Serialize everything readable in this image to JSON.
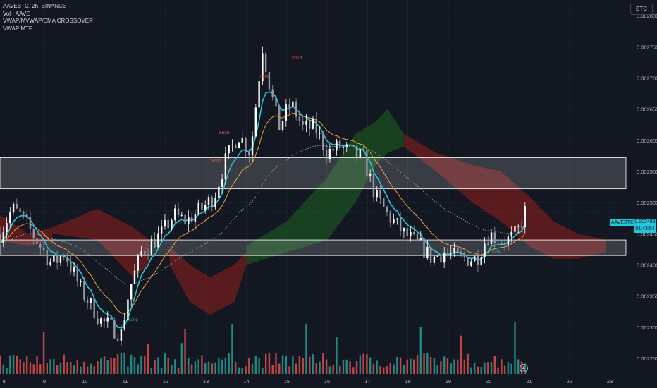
{
  "legend": {
    "symbol_line": "AAVEBTC, 2h, BINANCE",
    "indicators": [
      "Vol · AAVE",
      "VWAP/MVWAP/EMA CROSSOVER",
      "VWAP MTF"
    ]
  },
  "currency_badge": "BTC",
  "current_price": {
    "symbol": "AAVEBTC",
    "value": "0.002485",
    "countdown": "01:43:54"
  },
  "colors": {
    "background": "#131722",
    "up": "#ffffff",
    "down": "#9598a1",
    "vwap_line": "#26c6da",
    "ema_line": "#f0a23a",
    "mvwap_line": "#9fb6a8",
    "volume_up": "#26a69a",
    "volume_down": "#ef5350",
    "cloud_green": "#1b5e20",
    "cloud_red": "#8b1e1e",
    "zone": "#ffffff",
    "signal_short": "#ef5350",
    "signal_long": "#26a69a"
  },
  "chart_data": {
    "type": "candlestick",
    "x_labels": [
      "8",
      "9",
      "10",
      "11",
      "12",
      "13",
      "14",
      "15",
      "16",
      "17",
      "18",
      "19",
      "20",
      "21",
      "22",
      "23"
    ],
    "y_ticks": [
      "0.002800",
      "0.002750",
      "0.002700",
      "0.002650",
      "0.002600",
      "0.002550",
      "0.002500",
      "0.002450",
      "0.002400",
      "0.002350",
      "0.002300",
      "0.002250"
    ],
    "y_range": [
      0.002225,
      0.002825
    ],
    "x_range": [
      7.9,
      23.4
    ],
    "zones": [
      {
        "low": 0.002522,
        "high": 0.002572
      },
      {
        "low": 0.002415,
        "high": 0.00244
      }
    ],
    "close_anchors": [
      [
        7.9,
        0.00245
      ],
      [
        8.2,
        0.00249
      ],
      [
        8.4,
        0.00248
      ],
      [
        8.8,
        0.00244
      ],
      [
        9.2,
        0.0024
      ],
      [
        9.5,
        0.00242
      ],
      [
        9.9,
        0.00236
      ],
      [
        10.4,
        0.00231
      ],
      [
        10.9,
        0.00229
      ],
      [
        11.1,
        0.00236
      ],
      [
        11.4,
        0.00242
      ],
      [
        11.9,
        0.00245
      ],
      [
        12.2,
        0.00248
      ],
      [
        12.5,
        0.00247
      ],
      [
        12.9,
        0.00249
      ],
      [
        13.2,
        0.00251
      ],
      [
        13.5,
        0.00257
      ],
      [
        13.8,
        0.00261
      ],
      [
        14.1,
        0.00258
      ],
      [
        14.4,
        0.00275
      ],
      [
        14.6,
        0.00268
      ],
      [
        14.8,
        0.00262
      ],
      [
        15.1,
        0.00266
      ],
      [
        15.4,
        0.00262
      ],
      [
        15.7,
        0.00262
      ],
      [
        16.0,
        0.00258
      ],
      [
        16.3,
        0.00259
      ],
      [
        16.6,
        0.00258
      ],
      [
        16.9,
        0.00257
      ],
      [
        17.2,
        0.00251
      ],
      [
        17.5,
        0.00248
      ],
      [
        17.9,
        0.00245
      ],
      [
        18.3,
        0.00243
      ],
      [
        18.6,
        0.00241
      ],
      [
        18.9,
        0.00242
      ],
      [
        19.3,
        0.00241
      ],
      [
        19.7,
        0.00241
      ],
      [
        20.0,
        0.00245
      ],
      [
        20.3,
        0.00244
      ],
      [
        20.5,
        0.00244
      ],
      [
        20.7,
        0.00245
      ],
      [
        20.9,
        0.002485
      ]
    ],
    "volume_range": [
      0,
      8
    ],
    "signals": [
      {
        "label": "Short",
        "x": 13.45,
        "price": 0.00261
      },
      {
        "label": "Short",
        "x": 13.25,
        "price": 0.002565
      },
      {
        "label": "Short",
        "x": 14.45,
        "price": 0.0027
      },
      {
        "label": "Short",
        "x": 15.25,
        "price": 0.00273
      },
      {
        "label": "Long",
        "x": 11.2,
        "price": 0.00231
      },
      {
        "label": "Long",
        "x": 20.2,
        "price": 0.00242
      }
    ]
  }
}
